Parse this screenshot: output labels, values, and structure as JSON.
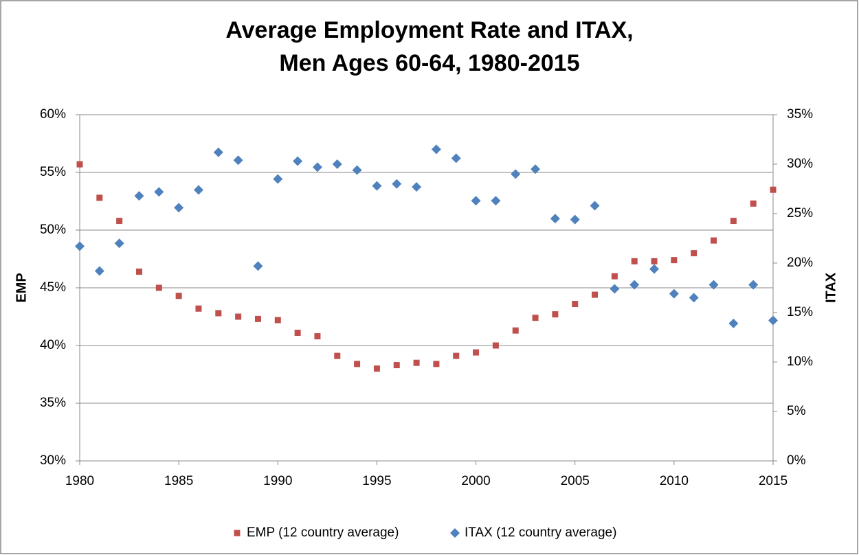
{
  "chart_data": {
    "type": "scatter",
    "title": [
      "Average Employment Rate and ITAX,",
      "Men Ages 60-64, 1980-2015"
    ],
    "y_label": "EMP",
    "y2_label": "ITAX",
    "x": [
      1980,
      1981,
      1982,
      1983,
      1984,
      1985,
      1986,
      1987,
      1988,
      1989,
      1990,
      1991,
      1992,
      1993,
      1994,
      1995,
      1996,
      1997,
      1998,
      1999,
      2000,
      2001,
      2002,
      2003,
      2004,
      2005,
      2006,
      2007,
      2008,
      2009,
      2010,
      2011,
      2012,
      2013,
      2014,
      2015
    ],
    "series": [
      {
        "name": "EMP (12 country average)",
        "color": "#c0504d",
        "marker": "square",
        "values": [
          55.7,
          52.8,
          50.8,
          46.4,
          45.0,
          44.3,
          43.2,
          42.8,
          42.5,
          42.3,
          42.2,
          41.1,
          40.8,
          39.1,
          38.4,
          38.0,
          38.3,
          38.5,
          38.4,
          39.1,
          39.4,
          40.0,
          41.3,
          42.4,
          42.7,
          43.6,
          44.4,
          46.0,
          47.3,
          47.3,
          47.4,
          48.0,
          49.1,
          50.8,
          52.3,
          53.5
        ]
      },
      {
        "name": "ITAX (12 country average)",
        "color": "#4f81bd",
        "marker": "diamond",
        "axis": "y2",
        "values": [
          21.7,
          19.2,
          22.0,
          26.8,
          27.2,
          25.6,
          27.4,
          31.2,
          30.4,
          19.7,
          28.5,
          30.3,
          29.7,
          30.0,
          29.4,
          27.8,
          28.0,
          27.7,
          31.5,
          30.6,
          26.3,
          26.3,
          29.0,
          29.5,
          24.5,
          24.4,
          25.8,
          17.4,
          17.8,
          19.4,
          16.9,
          16.5,
          17.8,
          13.9,
          17.8,
          14.2
        ]
      }
    ],
    "xlim": [
      1980,
      2015
    ],
    "xticks": [
      1980,
      1985,
      1990,
      1995,
      2000,
      2005,
      2010,
      2015
    ],
    "ylim": [
      30,
      60
    ],
    "yticks": [
      {
        "value": 30,
        "label": "30%"
      },
      {
        "value": 35,
        "label": "35%"
      },
      {
        "value": 40,
        "label": "40%"
      },
      {
        "value": 45,
        "label": "45%"
      },
      {
        "value": 50,
        "label": "50%"
      },
      {
        "value": 55,
        "label": "55%"
      },
      {
        "value": 60,
        "label": "60%"
      }
    ],
    "y2lim": [
      0,
      35
    ],
    "y2ticks": [
      {
        "value": 0,
        "label": "0%"
      },
      {
        "value": 5,
        "label": "5%"
      },
      {
        "value": 10,
        "label": "10%"
      },
      {
        "value": 15,
        "label": "15%"
      },
      {
        "value": 20,
        "label": "20%"
      },
      {
        "value": 25,
        "label": "25%"
      },
      {
        "value": 30,
        "label": "30%"
      },
      {
        "value": 35,
        "label": "35%"
      }
    ],
    "grid": true,
    "legend": "bottom"
  }
}
